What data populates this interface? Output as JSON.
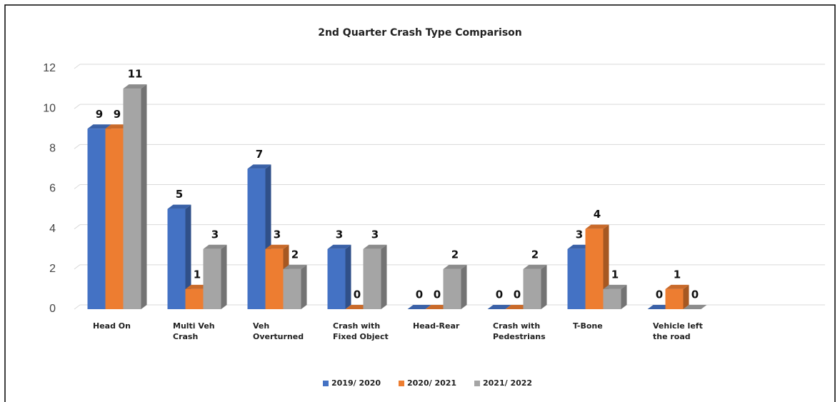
{
  "chart_data": {
    "type": "bar3d",
    "title": "2nd Quarter Crash Type Comparison",
    "categories": [
      "Head On",
      "Multi Veh Crash",
      "Veh Overturned",
      "Crash with Fixed Object",
      "Head-Rear",
      "Crash with Pedestrians",
      "T-Bone",
      "Vehicle left the road"
    ],
    "series": [
      {
        "name": "2019/ 2020",
        "color": "#4472c4",
        "values": [
          9,
          5,
          7,
          3,
          0,
          0,
          3,
          0
        ]
      },
      {
        "name": "2020/ 2021",
        "color": "#ed7d31",
        "values": [
          9,
          1,
          3,
          0,
          0,
          0,
          4,
          1
        ]
      },
      {
        "name": "2021/ 2022",
        "color": "#a5a5a5",
        "values": [
          11,
          3,
          2,
          3,
          2,
          2,
          1,
          0
        ]
      }
    ],
    "ylim": [
      0,
      12
    ],
    "yticks": [
      0,
      2,
      4,
      6,
      8,
      10,
      12
    ],
    "grid": true,
    "legend": "bottom"
  }
}
